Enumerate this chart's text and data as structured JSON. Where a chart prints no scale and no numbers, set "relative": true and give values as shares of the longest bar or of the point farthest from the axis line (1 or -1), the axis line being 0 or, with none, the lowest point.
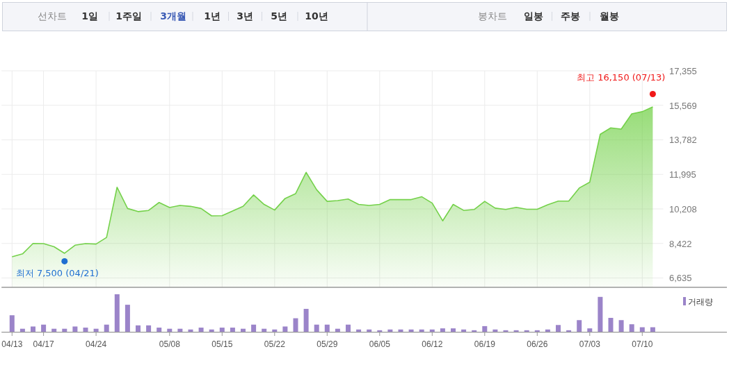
{
  "chart_data": [
    {
      "type": "other",
      "annotations": [
        "선차트",
        "1일",
        "1주일",
        "3개월",
        "1년",
        "3년",
        "5년",
        "10년",
        "봉차트",
        "일봉",
        "주봉",
        "월봉"
      ]
    },
    {
      "type": "area",
      "categories": [
        null,
        null,
        null,
        null,
        null,
        null,
        null,
        null,
        null,
        null,
        null,
        null,
        null,
        null,
        null,
        null,
        null,
        null,
        null,
        null,
        null,
        null,
        null,
        null,
        null,
        null,
        null,
        null,
        null,
        null,
        null,
        null,
        null,
        null,
        null,
        null,
        null,
        null,
        null,
        null,
        null,
        null,
        null,
        null,
        null,
        null,
        null,
        null,
        null,
        null,
        null,
        null,
        null,
        null,
        null,
        null,
        null,
        null,
        null,
        null,
        null,
        null
      ],
      "series": [
        {
          "type": "area",
          "color": "#74d14a",
          "values": [
            7730,
            7880,
            8420,
            8410,
            8250,
            7910,
            8330,
            8410,
            8390,
            8730,
            11330,
            10230,
            10070,
            10130,
            10540,
            10280,
            10390,
            10340,
            10230,
            9850,
            9860,
            10100,
            10340,
            10930,
            10440,
            10150,
            10750,
            11000,
            12100,
            11200,
            10600,
            10640,
            10720,
            10440,
            10390,
            10440,
            10690,
            10690,
            10690,
            10840,
            10510,
            9590,
            10440,
            10130,
            10180,
            10600,
            10250,
            10180,
            10290,
            10190,
            10190,
            10420,
            10610,
            10610,
            11290,
            11590,
            14070,
            14400,
            14340,
            15130,
            15240,
            15490
          ]
        },
        {
          "type": "scatter",
          "color": "#1f6fd1",
          "values": [
            null,
            null,
            null,
            null,
            null,
            7500,
            null,
            null,
            null,
            null,
            null,
            null,
            null,
            null,
            null,
            null,
            null,
            null,
            null,
            null,
            null,
            null,
            null,
            null,
            null,
            null,
            null,
            null,
            null,
            null,
            null,
            null,
            null,
            null,
            null,
            null,
            null,
            null,
            null,
            null,
            null,
            null,
            null,
            null,
            null,
            null,
            null,
            null,
            null,
            null,
            null,
            null,
            null,
            null,
            null,
            null,
            null,
            null,
            null,
            null,
            null,
            null
          ]
        },
        {
          "type": "scatter",
          "color": "#f01818",
          "values": [
            null,
            null,
            null,
            null,
            null,
            null,
            null,
            null,
            null,
            null,
            null,
            null,
            null,
            null,
            null,
            null,
            null,
            null,
            null,
            null,
            null,
            null,
            null,
            null,
            null,
            null,
            null,
            null,
            null,
            null,
            null,
            null,
            null,
            null,
            null,
            null,
            null,
            null,
            null,
            null,
            null,
            null,
            null,
            null,
            null,
            null,
            null,
            null,
            null,
            null,
            null,
            null,
            null,
            null,
            null,
            null,
            null,
            null,
            null,
            null,
            null,
            16150
          ]
        }
      ],
      "ylim": [
        6150,
        17355
      ],
      "yticks": [
        {
          "value": 6635,
          "label": "6,635"
        },
        {
          "value": 8422,
          "label": "8,422"
        },
        {
          "value": 10208,
          "label": "10,208"
        },
        {
          "value": 11995,
          "label": "11,995"
        },
        {
          "value": 13782,
          "label": "13,782"
        },
        {
          "value": 15569,
          "label": "15,569"
        },
        {
          "value": 17355,
          "label": "17,355"
        }
      ],
      "grid": true,
      "tick_labels": "y",
      "annotations": [
        "최저 7,500 (04/21)",
        "최고 16,150 (07/13)"
      ]
    },
    {
      "type": "bar",
      "categories": [
        "04/13",
        null,
        null,
        "04/17",
        null,
        null,
        null,
        null,
        "04/24",
        null,
        null,
        null,
        null,
        null,
        null,
        "05/08",
        null,
        null,
        null,
        null,
        "05/15",
        null,
        null,
        null,
        null,
        "05/22",
        null,
        null,
        null,
        null,
        "05/29",
        null,
        null,
        null,
        null,
        "06/05",
        null,
        null,
        null,
        null,
        "06/12",
        null,
        null,
        null,
        null,
        "06/19",
        null,
        null,
        null,
        null,
        "06/26",
        null,
        null,
        null,
        null,
        "07/03",
        null,
        null,
        null,
        null,
        "07/10",
        null
      ],
      "series": [
        {
          "name": "거래량",
          "color": "#9b84c9",
          "values": [
            0.44,
            0.08,
            0.14,
            0.19,
            0.08,
            0.08,
            0.14,
            0.11,
            0.08,
            0.19,
            1,
            0.72,
            0.17,
            0.17,
            0.11,
            0.08,
            0.08,
            0.06,
            0.11,
            0.06,
            0.11,
            0.11,
            0.08,
            0.19,
            0.08,
            0.06,
            0.14,
            0.36,
            0.61,
            0.19,
            0.19,
            0.08,
            0.19,
            0.06,
            0.06,
            0.04,
            0.06,
            0.06,
            0.06,
            0.06,
            0.06,
            0.09,
            0.09,
            0.06,
            0.04,
            0.15,
            0.06,
            0.04,
            0.04,
            0.04,
            0.04,
            0.06,
            0.18,
            0.04,
            0.31,
            0.09,
            0.93,
            0.37,
            0.31,
            0.2,
            0.12,
            0.12
          ]
        }
      ],
      "relative": true,
      "legend": "top right",
      "tick_labels": "x"
    }
  ]
}
